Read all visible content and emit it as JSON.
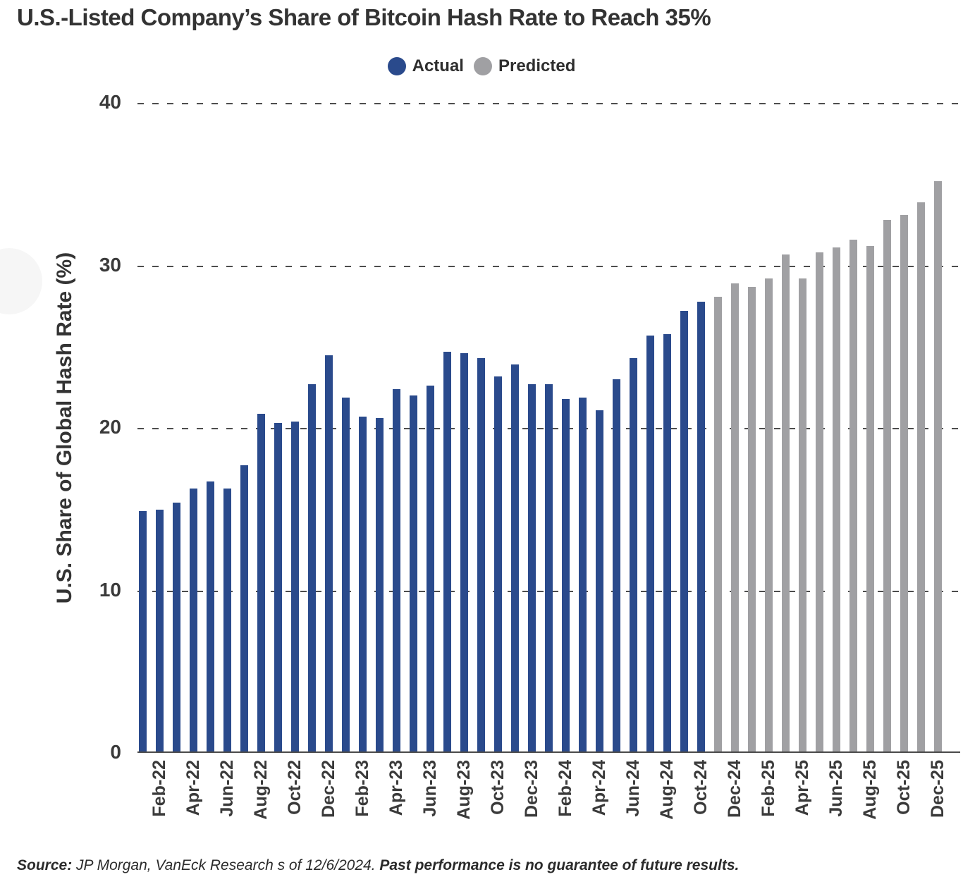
{
  "title": "U.S.-Listed Company’s Share of Bitcoin Hash Rate to Reach 35%",
  "legend": {
    "actual_label": "Actual",
    "predicted_label": "Predicted"
  },
  "colors": {
    "actual": "#2a4a8c",
    "predicted": "#a0a0a3",
    "gridline": "#4d4d4d",
    "text": "#3a3a3a"
  },
  "chart_data": {
    "type": "bar",
    "title": "U.S.-Listed Company’s Share of Bitcoin Hash Rate to Reach 35%",
    "xlabel": "",
    "ylabel": "U.S. Share of Global Hash Rate (%)",
    "ylim": [
      0,
      40
    ],
    "yticks": [
      0,
      10,
      20,
      30,
      40
    ],
    "grid": "horizontal-dashed",
    "legend_position": "top-center",
    "categories": [
      "Jan-22",
      "Feb-22",
      "Mar-22",
      "Apr-22",
      "May-22",
      "Jun-22",
      "Jul-22",
      "Aug-22",
      "Sep-22",
      "Oct-22",
      "Nov-22",
      "Dec-22",
      "Jan-23",
      "Feb-23",
      "Mar-23",
      "Apr-23",
      "May-23",
      "Jun-23",
      "Jul-23",
      "Aug-23",
      "Sep-23",
      "Oct-23",
      "Nov-23",
      "Dec-23",
      "Jan-24",
      "Feb-24",
      "Mar-24",
      "Apr-24",
      "May-24",
      "Jun-24",
      "Jul-24",
      "Aug-24",
      "Sep-24",
      "Oct-24",
      "Nov-24",
      "Dec-24",
      "Jan-25",
      "Feb-25",
      "Mar-25",
      "Apr-25",
      "May-25",
      "Jun-25",
      "Jul-25",
      "Aug-25",
      "Sep-25",
      "Oct-25",
      "Nov-25",
      "Dec-25"
    ],
    "x_tick_labels_shown": [
      "Feb-22",
      "Apr-22",
      "Jun-22",
      "Aug-22",
      "Oct-22",
      "Dec-22",
      "Feb-23",
      "Apr-23",
      "Jun-23",
      "Aug-23",
      "Oct-23",
      "Dec-23",
      "Feb-24",
      "Apr-24",
      "Jun-24",
      "Aug-24",
      "Oct-24",
      "Dec-24",
      "Feb-25",
      "Apr-25",
      "Jun-25",
      "Aug-25",
      "Oct-25",
      "Dec-25"
    ],
    "series": [
      {
        "name": "Actual",
        "color": "#2a4a8c",
        "first_month": "Jan-22",
        "last_month": "Oct-24",
        "values": [
          14.8,
          14.9,
          15.3,
          16.2,
          16.6,
          16.2,
          17.6,
          20.8,
          20.2,
          20.3,
          22.6,
          24.4,
          21.8,
          20.6,
          20.5,
          22.3,
          21.9,
          22.5,
          24.6,
          24.5,
          24.2,
          23.1,
          23.8,
          22.6,
          22.6,
          21.7,
          21.8,
          21.0,
          22.9,
          24.2,
          25.6,
          25.7,
          27.1,
          27.7
        ]
      },
      {
        "name": "Predicted",
        "color": "#a0a0a3",
        "first_month": "Nov-24",
        "last_month": "Dec-25",
        "values": [
          28.0,
          28.8,
          28.6,
          29.1,
          30.6,
          29.1,
          30.7,
          31.0,
          31.5,
          31.1,
          32.7,
          33.0,
          33.8,
          35.1
        ]
      }
    ]
  },
  "source": {
    "label": "Source:",
    "text": " JP Morgan, VanEck Research s of 12/6/2024. ",
    "disclaimer": "Past performance is no guarantee of future results."
  }
}
